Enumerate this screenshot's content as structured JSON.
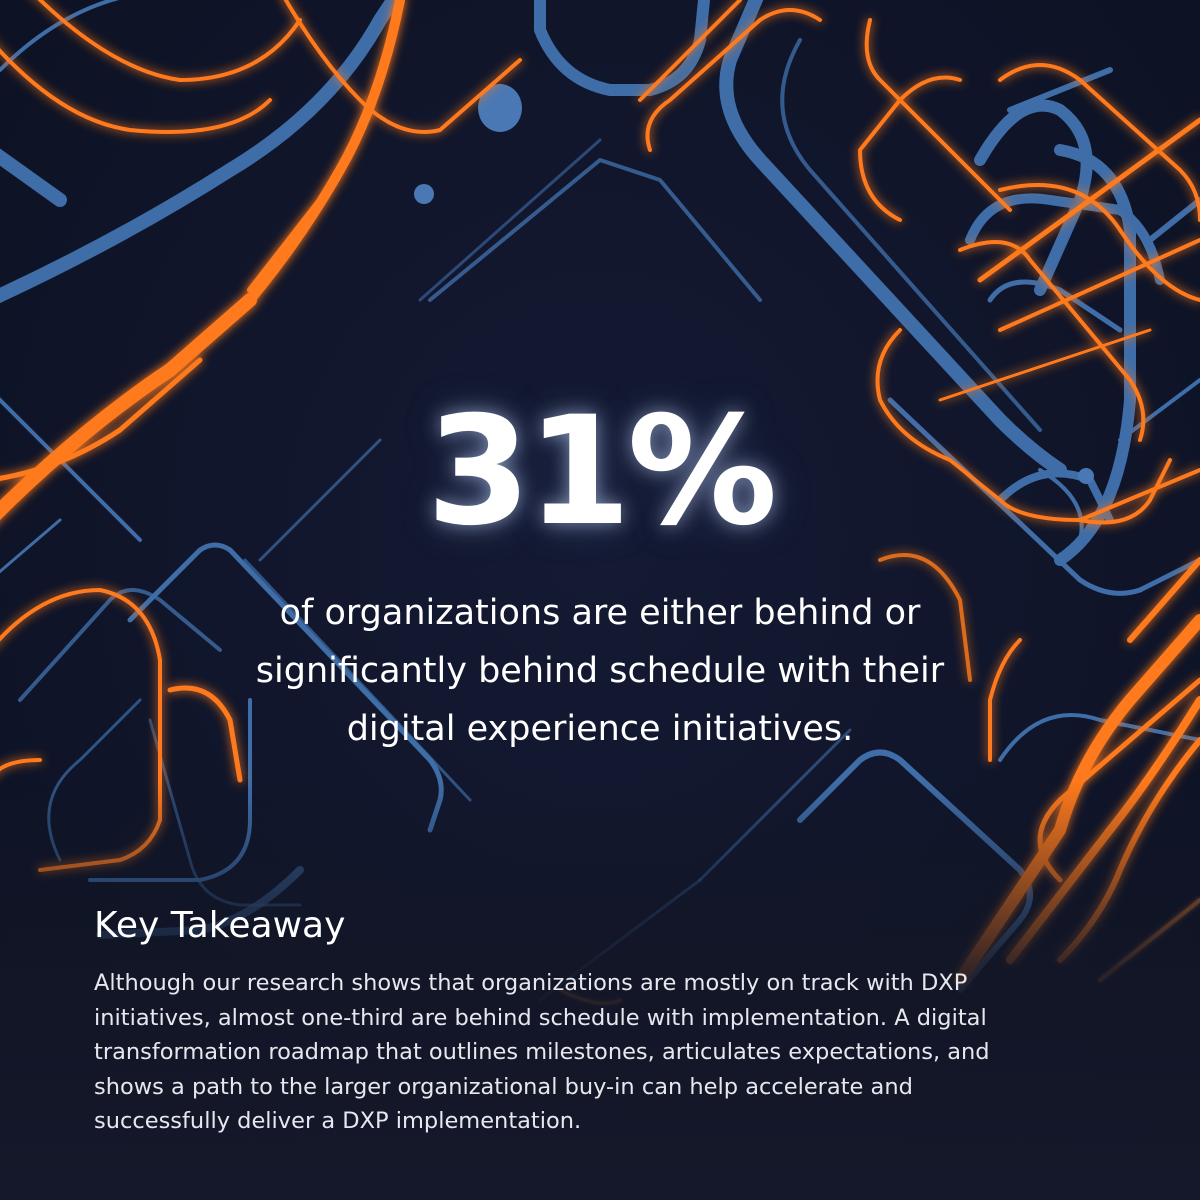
{
  "stat": {
    "value": "31%",
    "caption_lines": [
      "of organizations are either behind or",
      "significantly behind schedule with their",
      "digital experience initiatives."
    ]
  },
  "takeaway": {
    "title": "Key Takeaway",
    "lines": [
      "Although our research shows that organizations are mostly on track with DXP",
      "initiatives, almost one-third are behind schedule with implementation. A digital",
      "transformation roadmap that outlines milestones, articulates expectations, and",
      "shows a path to the larger organizational buy-in can help accelerate and",
      "successfully deliver a DXP implementation."
    ]
  },
  "colors": {
    "background": "#10152a",
    "orange": "#ff7a1a",
    "blue": "#3f6da8",
    "text": "#ffffff"
  }
}
